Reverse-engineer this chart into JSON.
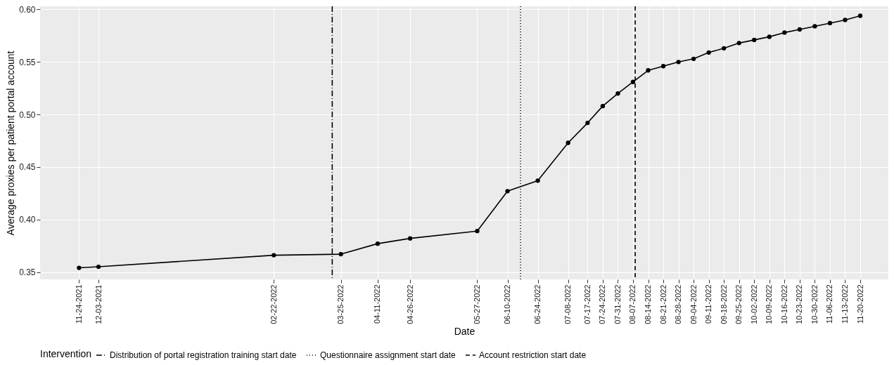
{
  "chart_data": {
    "type": "line",
    "xlabel": "Date",
    "ylabel": "Average proxies per patient portal account",
    "legend_title": "Intervention",
    "x": [
      "2021-11-24",
      "2021-12-03",
      "2022-02-22",
      "2022-03-25",
      "2022-04-11",
      "2022-04-26",
      "2022-05-27",
      "2022-06-10",
      "2022-06-24",
      "2022-07-08",
      "2022-07-17",
      "2022-07-24",
      "2022-07-31",
      "2022-08-07",
      "2022-08-14",
      "2022-08-21",
      "2022-08-28",
      "2022-09-04",
      "2022-09-11",
      "2022-09-18",
      "2022-09-25",
      "2022-10-02",
      "2022-10-09",
      "2022-10-16",
      "2022-10-23",
      "2022-10-30",
      "2022-11-06",
      "2022-11-13",
      "2022-11-20"
    ],
    "series": [
      {
        "color": "#000000",
        "values": [
          0.354,
          0.355,
          0.366,
          0.367,
          0.377,
          0.382,
          0.389,
          0.427,
          0.437,
          0.473,
          0.492,
          0.508,
          0.52,
          0.531,
          0.542,
          0.546,
          0.55,
          0.553,
          0.559,
          0.563,
          0.568,
          0.571,
          0.574,
          0.578,
          0.581,
          0.584,
          0.587,
          0.59,
          0.594
        ]
      }
    ],
    "xlim": [
      "2021-11-06",
      "2022-12-03"
    ],
    "xticks": [
      {
        "value": "2021-11-24",
        "label": "11-24-2021"
      },
      {
        "value": "2021-12-03",
        "label": "12-03-2021"
      },
      {
        "value": "2022-02-22",
        "label": "02-22-2022"
      },
      {
        "value": "2022-03-25",
        "label": "03-25-2022"
      },
      {
        "value": "2022-04-11",
        "label": "04-11-2022"
      },
      {
        "value": "2022-04-26",
        "label": "04-26-2022"
      },
      {
        "value": "2022-05-27",
        "label": "05-27-2022"
      },
      {
        "value": "2022-06-10",
        "label": "06-10-2022"
      },
      {
        "value": "2022-06-24",
        "label": "06-24-2022"
      },
      {
        "value": "2022-07-08",
        "label": "07-08-2022"
      },
      {
        "value": "2022-07-17",
        "label": "07-17-2022"
      },
      {
        "value": "2022-07-24",
        "label": "07-24-2022"
      },
      {
        "value": "2022-07-31",
        "label": "07-31-2022"
      },
      {
        "value": "2022-08-07",
        "label": "08-07-2022"
      },
      {
        "value": "2022-08-14",
        "label": "08-14-2022"
      },
      {
        "value": "2022-08-21",
        "label": "08-21-2022"
      },
      {
        "value": "2022-08-28",
        "label": "08-28-2022"
      },
      {
        "value": "2022-09-04",
        "label": "09-04-2022"
      },
      {
        "value": "2022-09-11",
        "label": "09-11-2022"
      },
      {
        "value": "2022-09-18",
        "label": "09-18-2022"
      },
      {
        "value": "2022-09-25",
        "label": "09-25-2022"
      },
      {
        "value": "2022-10-02",
        "label": "10-02-2022"
      },
      {
        "value": "2022-10-09",
        "label": "10-09-2022"
      },
      {
        "value": "2022-10-16",
        "label": "10-16-2022"
      },
      {
        "value": "2022-10-23",
        "label": "10-23-2022"
      },
      {
        "value": "2022-10-30",
        "label": "10-30-2022"
      },
      {
        "value": "2022-11-06",
        "label": "11-06-2022"
      },
      {
        "value": "2022-11-13",
        "label": "11-13-2022"
      },
      {
        "value": "2022-11-20",
        "label": "11-20-2022"
      }
    ],
    "ylim": [
      0.343,
      0.603
    ],
    "yticks": [
      {
        "value": 0.35,
        "label": "0.35"
      },
      {
        "value": 0.4,
        "label": "0.40"
      },
      {
        "value": 0.45,
        "label": "0.45"
      },
      {
        "value": 0.5,
        "label": "0.50"
      },
      {
        "value": 0.55,
        "label": "0.55"
      },
      {
        "value": 0.6,
        "label": "0.60"
      }
    ],
    "ref_lines": [
      {
        "axis": "x",
        "value": "2022-03-21",
        "label": "Distribution of portal registration training start date",
        "line_style": "dashdot",
        "color": "#000000"
      },
      {
        "axis": "x",
        "value": "2022-06-16",
        "label": "Questionnaire assignment start date",
        "line_style": "dotted",
        "color": "#000000"
      },
      {
        "axis": "x",
        "value": "2022-08-08",
        "label": "Account restriction start date",
        "line_style": "dashed",
        "color": "#000000"
      }
    ],
    "grid": true,
    "legend": "bottom",
    "marker": "circle",
    "line_style": "solid"
  }
}
